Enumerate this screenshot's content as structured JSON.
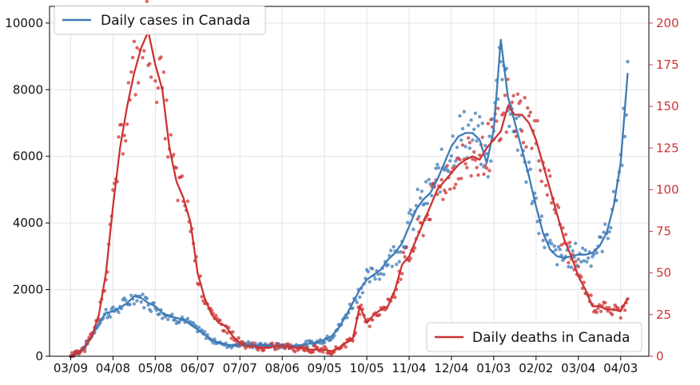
{
  "chart_data": {
    "type": "line",
    "title": "",
    "xlabel": "",
    "ylabel": "",
    "ylabel_right": "",
    "x_tick_labels": [
      "03/09",
      "04/08",
      "05/08",
      "06/07",
      "07/07",
      "08/06",
      "09/05",
      "10/05",
      "11/04",
      "12/04",
      "01/03",
      "02/02",
      "03/04",
      "04/03"
    ],
    "x_tick_days": [
      0,
      30,
      60,
      90,
      120,
      150,
      180,
      210,
      240,
      270,
      300,
      330,
      360,
      390
    ],
    "xlim_days": [
      -15,
      410
    ],
    "ylim_left": [
      0,
      10500
    ],
    "ylim_right": [
      0,
      210
    ],
    "yticks_left": [
      0,
      2000,
      4000,
      6000,
      8000,
      10000
    ],
    "yticks_right": [
      0,
      25,
      50,
      75,
      100,
      125,
      150,
      175,
      200
    ],
    "grid": true,
    "legend": [
      {
        "label": "Daily cases in Canada",
        "location": "top-left",
        "color": "#3f7bb5"
      },
      {
        "label": "Daily deaths in Canada",
        "location": "bottom-right",
        "color": "#cc3333"
      }
    ],
    "series": [
      {
        "name": "Daily cases in Canada",
        "axis": "left",
        "color": "#3f7bb5",
        "x_days": [
          0,
          5,
          10,
          15,
          20,
          25,
          30,
          35,
          40,
          45,
          50,
          55,
          60,
          65,
          70,
          75,
          80,
          85,
          90,
          95,
          100,
          105,
          110,
          115,
          120,
          125,
          130,
          135,
          140,
          145,
          150,
          155,
          160,
          165,
          170,
          175,
          180,
          185,
          190,
          195,
          200,
          205,
          210,
          215,
          220,
          225,
          230,
          235,
          240,
          245,
          250,
          255,
          260,
          265,
          270,
          275,
          280,
          285,
          290,
          295,
          300,
          305,
          310,
          315,
          320,
          325,
          330,
          335,
          340,
          345,
          350,
          355,
          360,
          365,
          370,
          375,
          380,
          385,
          390,
          395
        ],
        "values": [
          0,
          100,
          300,
          600,
          1000,
          1300,
          1350,
          1450,
          1600,
          1800,
          1750,
          1600,
          1500,
          1300,
          1200,
          1150,
          1100,
          950,
          800,
          650,
          500,
          400,
          350,
          320,
          380,
          350,
          320,
          330,
          320,
          300,
          320,
          300,
          320,
          350,
          380,
          420,
          500,
          600,
          850,
          1200,
          1600,
          2000,
          2300,
          2450,
          2600,
          2900,
          3100,
          3400,
          3900,
          4400,
          4700,
          4900,
          5300,
          5800,
          6300,
          6600,
          6700,
          6700,
          6500,
          5800,
          6800,
          9500,
          7800,
          7000,
          6200,
          5400,
          4500,
          3700,
          3200,
          3000,
          2950,
          3000,
          3050,
          3050,
          3100,
          3300,
          3700,
          4500,
          5800,
          8500
        ]
      },
      {
        "name": "Daily deaths in Canada",
        "axis": "right",
        "color": "#cc3333",
        "x_days": [
          0,
          5,
          10,
          15,
          20,
          25,
          30,
          35,
          40,
          45,
          50,
          55,
          60,
          65,
          70,
          75,
          80,
          85,
          90,
          95,
          100,
          105,
          110,
          115,
          120,
          125,
          130,
          135,
          140,
          145,
          150,
          155,
          160,
          165,
          170,
          175,
          180,
          185,
          190,
          195,
          200,
          205,
          210,
          215,
          220,
          225,
          230,
          235,
          240,
          245,
          250,
          255,
          260,
          265,
          270,
          275,
          280,
          285,
          290,
          295,
          300,
          305,
          310,
          315,
          320,
          325,
          330,
          335,
          340,
          345,
          350,
          355,
          360,
          365,
          370,
          375,
          380,
          385,
          390,
          395
        ],
        "values": [
          0,
          2,
          5,
          12,
          25,
          50,
          90,
          125,
          150,
          170,
          185,
          195,
          175,
          160,
          125,
          105,
          95,
          80,
          50,
          35,
          25,
          20,
          18,
          12,
          8,
          6,
          6,
          5,
          5,
          6,
          6,
          6,
          5,
          5,
          4,
          4,
          4,
          3,
          5,
          8,
          10,
          30,
          20,
          25,
          28,
          30,
          40,
          55,
          60,
          70,
          80,
          90,
          100,
          105,
          110,
          115,
          118,
          120,
          118,
          125,
          130,
          135,
          150,
          145,
          145,
          140,
          130,
          115,
          100,
          85,
          70,
          60,
          48,
          40,
          30,
          30,
          28,
          28,
          27,
          35
        ]
      }
    ],
    "scatter_jitter_pct": 12
  }
}
